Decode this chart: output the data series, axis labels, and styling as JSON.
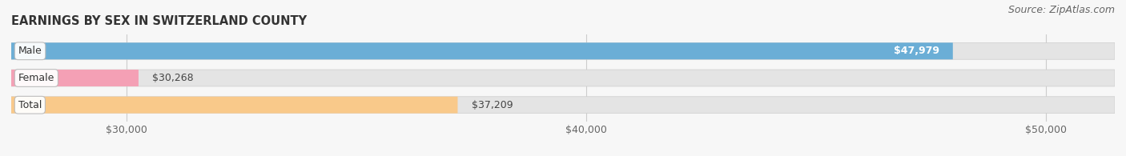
{
  "title": "EARNINGS BY SEX IN SWITZERLAND COUNTY",
  "source": "Source: ZipAtlas.com",
  "categories": [
    "Male",
    "Female",
    "Total"
  ],
  "values": [
    47979,
    30268,
    37209
  ],
  "bar_colors": [
    "#6baed6",
    "#f4a0b5",
    "#f9c98a"
  ],
  "value_labels": [
    "$47,979",
    "$30,268",
    "$37,209"
  ],
  "xmin": 27500,
  "xmax": 51500,
  "xticks": [
    30000,
    40000,
    50000
  ],
  "xtick_labels": [
    "$30,000",
    "$40,000",
    "$50,000"
  ],
  "bar_height": 0.62,
  "bg_track_color": "#e4e4e4",
  "title_fontsize": 10.5,
  "label_fontsize": 9,
  "tick_fontsize": 9,
  "source_fontsize": 9,
  "bg_color": "#f7f7f7"
}
